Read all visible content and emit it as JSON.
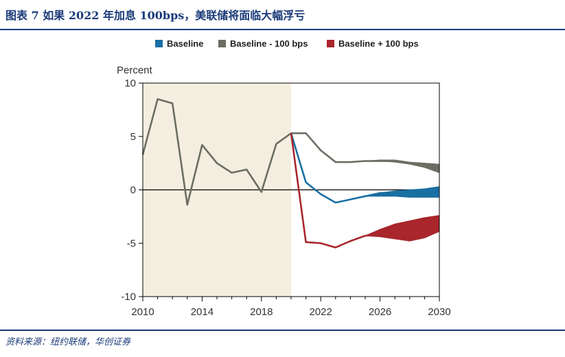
{
  "header": {
    "title": "图表 7    如果 2022 年加息 100bps，美联储将面临大幅浮亏"
  },
  "footer": {
    "source": "资料来源：纽约联储，华创证券"
  },
  "colors": {
    "baseline": "#1a6fa3",
    "baseline_minus": "#6b6e62",
    "baseline_plus": "#a8262c",
    "history_shade": "#f3eedf",
    "title": "#1a3a78"
  },
  "chart_data": {
    "type": "line",
    "ylabel": "Percent",
    "xlabel": "",
    "xlim": [
      2010,
      2030
    ],
    "ylim": [
      -10,
      10
    ],
    "xticks": [
      "2010",
      "2014",
      "2018",
      "2022",
      "2026",
      "2030"
    ],
    "yticks": [
      "10",
      "5",
      "0",
      "-5",
      "-10"
    ],
    "shaded_history": [
      2010,
      2020
    ],
    "legend": [
      {
        "key": "baseline",
        "label": "Baseline"
      },
      {
        "key": "baseline_minus",
        "label": "Baseline - 100 bps"
      },
      {
        "key": "baseline_plus",
        "label": "Baseline + 100 bps"
      }
    ],
    "series": [
      {
        "name": "Historical",
        "color_key": "baseline_minus",
        "x": [
          2010,
          2011,
          2012,
          2013,
          2014,
          2015,
          2016,
          2017,
          2018,
          2019,
          2020
        ],
        "y": [
          3.3,
          8.5,
          8.1,
          -1.4,
          4.2,
          2.5,
          1.6,
          1.9,
          -0.2,
          4.3,
          5.3
        ]
      },
      {
        "name": "Baseline - 100 bps",
        "color_key": "baseline_minus",
        "x": [
          2020,
          2021,
          2022,
          2023,
          2024,
          2025,
          2026,
          2027,
          2028,
          2029,
          2030
        ],
        "y": [
          5.3,
          5.3,
          3.7,
          2.6,
          2.6,
          2.7,
          2.7,
          2.7,
          2.5,
          2.3,
          2.1
        ],
        "band_upper": [
          5.3,
          5.3,
          3.7,
          2.6,
          2.6,
          2.7,
          2.8,
          2.8,
          2.6,
          2.5,
          2.4
        ],
        "band_lower": [
          5.3,
          5.3,
          3.7,
          2.6,
          2.6,
          2.7,
          2.7,
          2.6,
          2.4,
          2.1,
          1.6
        ]
      },
      {
        "name": "Baseline",
        "color_key": "baseline",
        "x": [
          2020,
          2021,
          2022,
          2023,
          2024,
          2025,
          2026,
          2027,
          2028,
          2029,
          2030
        ],
        "y": [
          5.3,
          0.7,
          -0.4,
          -1.2,
          -0.9,
          -0.6,
          -0.3,
          -0.2,
          -0.2,
          -0.2,
          -0.2
        ],
        "band_upper": [
          5.3,
          0.7,
          -0.4,
          -1.2,
          -0.9,
          -0.6,
          -0.3,
          -0.1,
          0.0,
          0.1,
          0.3
        ],
        "band_lower": [
          5.3,
          0.7,
          -0.4,
          -1.2,
          -0.9,
          -0.6,
          -0.6,
          -0.6,
          -0.7,
          -0.7,
          -0.7
        ]
      },
      {
        "name": "Baseline + 100 bps",
        "color_key": "baseline_plus",
        "x": [
          2020,
          2021,
          2022,
          2023,
          2024,
          2025,
          2026,
          2027,
          2028,
          2029,
          2030
        ],
        "y": [
          5.3,
          -4.9,
          -5.0,
          -5.4,
          -4.8,
          -4.3,
          -4.2,
          -4.2,
          -4.0,
          -3.6,
          -3.2
        ],
        "band_upper": [
          5.3,
          -4.9,
          -5.0,
          -5.4,
          -4.8,
          -4.3,
          -3.7,
          -3.2,
          -2.9,
          -2.6,
          -2.4
        ],
        "band_lower": [
          5.3,
          -4.9,
          -5.0,
          -5.4,
          -4.8,
          -4.3,
          -4.4,
          -4.6,
          -4.8,
          -4.5,
          -3.9
        ]
      }
    ]
  }
}
